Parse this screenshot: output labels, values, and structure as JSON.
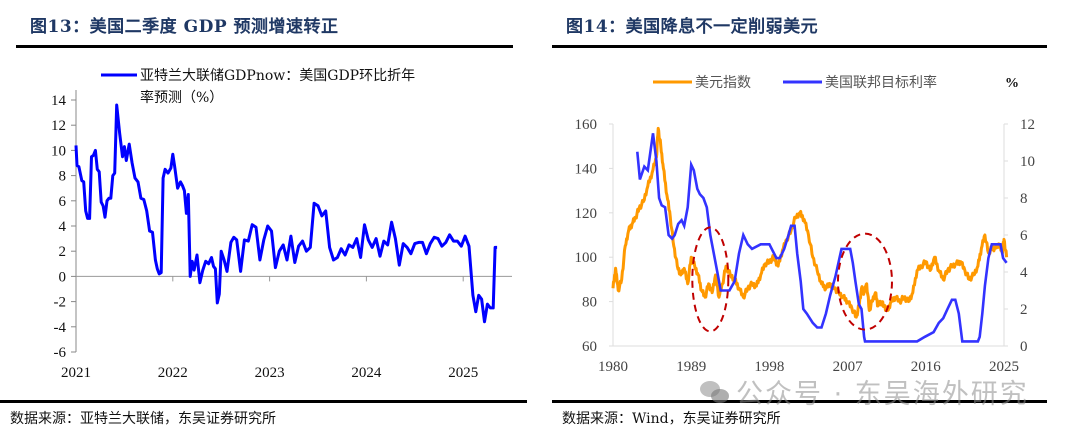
{
  "panels": [
    {
      "title": "图13：美国二季度 GDP 预测增速转正",
      "source": "数据来源：亚特兰大联储，东吴证券研究所"
    },
    {
      "title": "图14：美国降息不一定削弱美元",
      "source": "数据来源：Wind，东吴证券研究所"
    }
  ],
  "watermark": "公众号 · 东吴海外研究",
  "colors": {
    "gdp_line": "#0000ff",
    "dxy_line": "#ff9900",
    "fed_line": "#3333ff",
    "ellipse": "#c00000",
    "title": "#1f3864"
  },
  "chart_data": [
    {
      "type": "line",
      "title": "美国二季度 GDP 预测增速转正",
      "xlabel": "",
      "ylabel": "",
      "legend": [
        "亚特兰大联储GDPnow：美国GDP环比折年",
        "率预测（%）"
      ],
      "legend_position": "top-right",
      "ylim": [
        -6,
        14
      ],
      "yticks": [
        -6,
        -4,
        -2,
        0,
        2,
        4,
        6,
        8,
        10,
        12,
        14
      ],
      "xlim": [
        2021,
        2025.6
      ],
      "xticks": [
        "2021",
        "2022",
        "2023",
        "2024",
        "2025"
      ],
      "grid": false,
      "series": [
        {
          "name": "亚特兰大联储GDPnow：美国GDP环比折年率预测（%）",
          "x": [
            2021.0,
            2021.01,
            2021.03,
            2021.06,
            2021.08,
            2021.1,
            2021.12,
            2021.14,
            2021.16,
            2021.18,
            2021.2,
            2021.22,
            2021.24,
            2021.26,
            2021.28,
            2021.3,
            2021.32,
            2021.34,
            2021.36,
            2021.38,
            2021.4,
            2021.42,
            2021.45,
            2021.48,
            2021.5,
            2021.52,
            2021.55,
            2021.58,
            2021.61,
            2021.64,
            2021.67,
            2021.7,
            2021.73,
            2021.76,
            2021.79,
            2021.82,
            2021.84,
            2021.86,
            2021.88,
            2021.9,
            2021.92,
            2021.95,
            2021.98,
            2022.0,
            2022.02,
            2022.05,
            2022.08,
            2022.1,
            2022.12,
            2022.14,
            2022.16,
            2022.18,
            2022.2,
            2022.22,
            2022.25,
            2022.28,
            2022.31,
            2022.34,
            2022.37,
            2022.4,
            2022.42,
            2022.44,
            2022.46,
            2022.48,
            2022.5,
            2022.53,
            2022.56,
            2022.6,
            2022.63,
            2022.66,
            2022.7,
            2022.74,
            2022.78,
            2022.82,
            2022.86,
            2022.9,
            2022.94,
            2022.98,
            2023.02,
            2023.06,
            2023.1,
            2023.14,
            2023.18,
            2023.22,
            2023.26,
            2023.3,
            2023.34,
            2023.38,
            2023.42,
            2023.46,
            2023.5,
            2023.54,
            2023.58,
            2023.62,
            2023.66,
            2023.7,
            2023.74,
            2023.78,
            2023.82,
            2023.86,
            2023.9,
            2023.94,
            2023.98,
            2024.02,
            2024.06,
            2024.1,
            2024.14,
            2024.18,
            2024.22,
            2024.26,
            2024.3,
            2024.34,
            2024.38,
            2024.42,
            2024.46,
            2024.5,
            2024.54,
            2024.58,
            2024.62,
            2024.66,
            2024.7,
            2024.74,
            2024.78,
            2024.82,
            2024.86,
            2024.9,
            2024.94,
            2024.98,
            2025.02,
            2025.06,
            2025.1,
            2025.13,
            2025.16,
            2025.19,
            2025.22,
            2025.25,
            2025.28,
            2025.31,
            2025.33,
            2025.35
          ],
          "values": [
            10.4,
            8.8,
            8.7,
            7.6,
            7.5,
            5.2,
            4.6,
            4.6,
            9.5,
            9.6,
            10.0,
            8.5,
            8.3,
            5.9,
            5.6,
            4.7,
            6.0,
            6.2,
            6.2,
            8.0,
            8.2,
            13.6,
            11.4,
            9.5,
            10.3,
            9.2,
            10.5,
            9.0,
            7.8,
            7.5,
            6.2,
            6.1,
            5.2,
            3.6,
            3.5,
            1.3,
            0.6,
            0.2,
            0.3,
            7.8,
            8.5,
            8.2,
            8.6,
            9.7,
            8.7,
            7.0,
            7.5,
            7.2,
            6.8,
            5.0,
            6.5,
            0.0,
            1.2,
            0.5,
            1.7,
            -0.5,
            0.5,
            1.2,
            1.0,
            1.5,
            0.8,
            0.6,
            -2.1,
            -1.4,
            2.0,
            1.3,
            0.4,
            2.7,
            3.1,
            2.9,
            0.4,
            2.9,
            2.8,
            4.1,
            3.9,
            1.3,
            2.9,
            4.0,
            3.6,
            0.7,
            2.0,
            2.5,
            1.3,
            3.2,
            1.1,
            2.4,
            2.8,
            2.0,
            2.3,
            5.8,
            5.6,
            4.8,
            5.2,
            2.3,
            1.3,
            1.5,
            2.2,
            1.7,
            2.5,
            2.3,
            3.0,
            1.5,
            4.1,
            2.9,
            2.3,
            3.0,
            1.6,
            2.8,
            2.5,
            4.3,
            3.0,
            0.9,
            2.6,
            2.3,
            1.8,
            2.6,
            2.7,
            2.7,
            1.8,
            2.6,
            3.1,
            3.0,
            2.4,
            2.7,
            3.3,
            2.8,
            2.8,
            2.4,
            3.2,
            2.4,
            -1.5,
            -2.8,
            -1.5,
            -1.8,
            -3.6,
            -2.2,
            -2.5,
            -2.5,
            2.3,
            2.3
          ]
        }
      ]
    },
    {
      "type": "line",
      "title": "美国降息不一定削弱美元",
      "xlabel": "",
      "ylabel": "",
      "y2label": "%",
      "legend": [
        "美元指数",
        "美国联邦目标利率"
      ],
      "legend_position": "top",
      "ylim": [
        60,
        160
      ],
      "yticks": [
        60,
        80,
        100,
        120,
        140,
        160
      ],
      "y2lim": [
        0,
        12
      ],
      "y2ticks": [
        0,
        2,
        4,
        6,
        8,
        10,
        12
      ],
      "xlim": [
        1980,
        2025
      ],
      "xticks": [
        "1980",
        "1989",
        "1998",
        "2007",
        "2016",
        "2025"
      ],
      "grid": false,
      "annotations": [
        {
          "type": "dashed-ellipse",
          "center_x": 1991.2,
          "center_y_left_axis": 90,
          "description": "highlight 1989-1993 rate cuts"
        },
        {
          "type": "dashed-ellipse",
          "center_x": 2009.0,
          "center_y_left_axis": 89,
          "description": "highlight 2007-2010 rate cuts"
        }
      ],
      "series": [
        {
          "name": "美元指数",
          "axis": "left",
          "x": [
            1980.0,
            1980.3,
            1980.6,
            1981.0,
            1981.4,
            1981.8,
            1982.2,
            1982.6,
            1983.0,
            1983.5,
            1984.0,
            1984.5,
            1985.0,
            1985.2,
            1985.5,
            1985.8,
            1986.2,
            1986.6,
            1987.0,
            1987.4,
            1987.8,
            1988.2,
            1988.6,
            1989.0,
            1989.4,
            1989.8,
            1990.2,
            1990.6,
            1991.0,
            1991.4,
            1991.8,
            1992.2,
            1992.6,
            1993.0,
            1993.5,
            1994.0,
            1994.5,
            1995.0,
            1995.5,
            1996.0,
            1996.5,
            1997.0,
            1997.5,
            1998.0,
            1998.5,
            1999.0,
            1999.5,
            2000.0,
            2000.5,
            2001.0,
            2001.5,
            2002.0,
            2002.5,
            2003.0,
            2003.5,
            2004.0,
            2004.5,
            2005.0,
            2005.5,
            2006.0,
            2006.5,
            2007.0,
            2007.5,
            2008.0,
            2008.3,
            2008.6,
            2008.9,
            2009.2,
            2009.5,
            2009.8,
            2010.2,
            2010.5,
            2010.8,
            2011.2,
            2011.6,
            2012.0,
            2012.5,
            2013.0,
            2013.5,
            2014.0,
            2014.5,
            2015.0,
            2015.5,
            2016.0,
            2016.5,
            2017.0,
            2017.5,
            2018.0,
            2018.5,
            2019.0,
            2019.5,
            2020.0,
            2020.5,
            2021.0,
            2021.5,
            2022.0,
            2022.4,
            2022.8,
            2023.2,
            2023.6,
            2024.0,
            2024.4,
            2024.8,
            2025.0,
            2025.3
          ],
          "values": [
            86,
            95,
            85,
            90,
            105,
            112,
            115,
            118,
            122,
            125,
            132,
            138,
            145,
            158,
            150,
            140,
            128,
            118,
            105,
            96,
            92,
            95,
            88,
            100,
            96,
            92,
            85,
            82,
            88,
            84,
            92,
            82,
            88,
            96,
            92,
            90,
            86,
            82,
            86,
            88,
            87,
            92,
            97,
            98,
            100,
            96,
            103,
            108,
            112,
            118,
            120,
            117,
            110,
            100,
            94,
            88,
            86,
            88,
            86,
            84,
            82,
            80,
            77,
            73,
            78,
            86,
            84,
            88,
            76,
            80,
            84,
            78,
            80,
            78,
            76,
            80,
            82,
            80,
            82,
            80,
            84,
            94,
            96,
            98,
            94,
            100,
            94,
            90,
            94,
            96,
            97,
            98,
            94,
            90,
            92,
            96,
            104,
            110,
            102,
            104,
            104,
            106,
            102,
            108,
            100
          ]
        },
        {
          "name": "美国联邦目标利率",
          "axis": "right",
          "x": [
            1982.8,
            1983.1,
            1983.6,
            1984.0,
            1984.3,
            1984.6,
            1985.0,
            1985.3,
            1985.6,
            1986.0,
            1986.4,
            1986.8,
            1987.1,
            1987.5,
            1987.9,
            1988.2,
            1988.6,
            1989.0,
            1989.3,
            1989.7,
            1990.0,
            1990.4,
            1990.8,
            1991.2,
            1991.6,
            1992.0,
            1992.4,
            1992.8,
            1993.4,
            1994.0,
            1994.5,
            1995.0,
            1995.5,
            1996.0,
            1997.0,
            1998.0,
            1998.8,
            1999.2,
            1999.7,
            2000.2,
            2000.5,
            2000.9,
            2001.2,
            2001.6,
            2001.9,
            2002.3,
            2003.0,
            2003.5,
            2004.0,
            2004.5,
            2005.0,
            2005.6,
            2006.3,
            2007.3,
            2007.6,
            2007.9,
            2008.3,
            2008.6,
            2008.9,
            2009.0,
            2012.0,
            2015.0,
            2015.9,
            2016.9,
            2017.5,
            2018.0,
            2018.5,
            2019.0,
            2019.4,
            2019.8,
            2020.2,
            2022.0,
            2022.2,
            2022.5,
            2022.8,
            2023.2,
            2023.6,
            2024.6,
            2024.9,
            2025.3
          ],
          "values": [
            10.5,
            9.0,
            9.7,
            9.5,
            10.5,
            11.5,
            10.0,
            8.0,
            7.6,
            7.5,
            6.0,
            5.8,
            6.0,
            6.6,
            6.8,
            6.5,
            7.5,
            9.8,
            9.5,
            8.5,
            8.2,
            8.0,
            7.5,
            6.0,
            5.0,
            4.0,
            3.0,
            3.0,
            3.0,
            3.5,
            5.0,
            6.0,
            5.5,
            5.25,
            5.5,
            5.5,
            4.75,
            4.75,
            5.25,
            6.0,
            6.5,
            6.5,
            5.0,
            3.5,
            2.0,
            1.75,
            1.25,
            1.0,
            1.0,
            1.75,
            2.75,
            3.75,
            5.25,
            5.25,
            4.5,
            3.5,
            2.25,
            2.0,
            0.5,
            0.25,
            0.25,
            0.25,
            0.5,
            0.75,
            1.25,
            1.5,
            2.0,
            2.5,
            2.5,
            1.75,
            0.25,
            0.25,
            0.5,
            1.75,
            3.25,
            4.75,
            5.5,
            5.5,
            4.75,
            4.5
          ]
        }
      ]
    }
  ]
}
